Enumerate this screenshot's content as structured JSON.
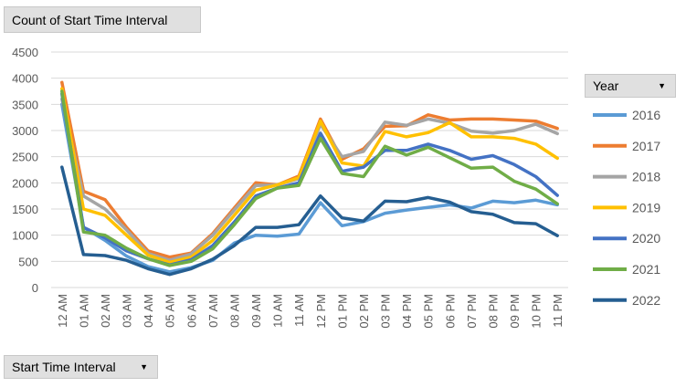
{
  "pivot": {
    "value_field": "Count of Start Time Interval",
    "axis_field": "Start Time Interval",
    "legend_field": "Year"
  },
  "icons": {
    "dropdown": "dropdown-arrow-icon"
  },
  "chart_data": {
    "type": "line",
    "title": "",
    "xlabel": "",
    "ylabel": "",
    "ylim": [
      0,
      4500
    ],
    "yticks": [
      0,
      500,
      1000,
      1500,
      2000,
      2500,
      3000,
      3500,
      4000,
      4500
    ],
    "grid": true,
    "legend_placement": "right",
    "categories": [
      "12 AM",
      "01 AM",
      "02 AM",
      "03 AM",
      "04 AM",
      "05 AM",
      "06 AM",
      "07 AM",
      "08 AM",
      "09 AM",
      "10 AM",
      "11 AM",
      "12 PM",
      "01 PM",
      "02 PM",
      "03 PM",
      "04 PM",
      "05 PM",
      "06 PM",
      "07 PM",
      "08 PM",
      "09 PM",
      "10 PM",
      "11 PM"
    ],
    "series": [
      {
        "name": "2016",
        "color": "#5b9bd5",
        "values": [
          3500,
          1150,
          900,
          600,
          400,
          300,
          380,
          520,
          850,
          1000,
          980,
          1020,
          1620,
          1180,
          1260,
          1420,
          1480,
          1530,
          1580,
          1520,
          1650,
          1620,
          1670,
          1580
        ]
      },
      {
        "name": "2017",
        "color": "#ed7d31",
        "values": [
          3920,
          1840,
          1680,
          1150,
          700,
          580,
          660,
          1030,
          1520,
          2000,
          1960,
          2130,
          3220,
          2450,
          2650,
          3080,
          3090,
          3300,
          3200,
          3220,
          3220,
          3200,
          3180,
          3040
        ]
      },
      {
        "name": "2018",
        "color": "#a5a5a5",
        "values": [
          3600,
          1750,
          1500,
          1100,
          650,
          520,
          640,
          1000,
          1480,
          1950,
          1960,
          2080,
          3120,
          2500,
          2600,
          3160,
          3100,
          3220,
          3140,
          2990,
          2950,
          3000,
          3120,
          2940
        ]
      },
      {
        "name": "2019",
        "color": "#ffc000",
        "values": [
          3800,
          1500,
          1380,
          1000,
          620,
          480,
          580,
          900,
          1380,
          1860,
          1960,
          2100,
          3180,
          2380,
          2320,
          2980,
          2880,
          2960,
          3150,
          2880,
          2880,
          2850,
          2740,
          2470
        ]
      },
      {
        "name": "2020",
        "color": "#4472c4",
        "values": [
          3700,
          1150,
          950,
          700,
          550,
          430,
          530,
          800,
          1250,
          1750,
          1900,
          2000,
          2950,
          2220,
          2300,
          2620,
          2620,
          2740,
          2620,
          2450,
          2520,
          2350,
          2120,
          1760
        ]
      },
      {
        "name": "2021",
        "color": "#70ad47",
        "values": [
          3750,
          1060,
          1000,
          750,
          550,
          420,
          500,
          740,
          1200,
          1700,
          1900,
          1950,
          2850,
          2180,
          2120,
          2700,
          2530,
          2680,
          2480,
          2280,
          2300,
          2030,
          1880,
          1600
        ]
      },
      {
        "name": "2022",
        "color": "#255e91",
        "values": [
          2300,
          630,
          610,
          520,
          360,
          250,
          360,
          540,
          800,
          1150,
          1150,
          1200,
          1750,
          1330,
          1270,
          1650,
          1640,
          1720,
          1630,
          1450,
          1400,
          1240,
          1220,
          990
        ]
      }
    ]
  }
}
